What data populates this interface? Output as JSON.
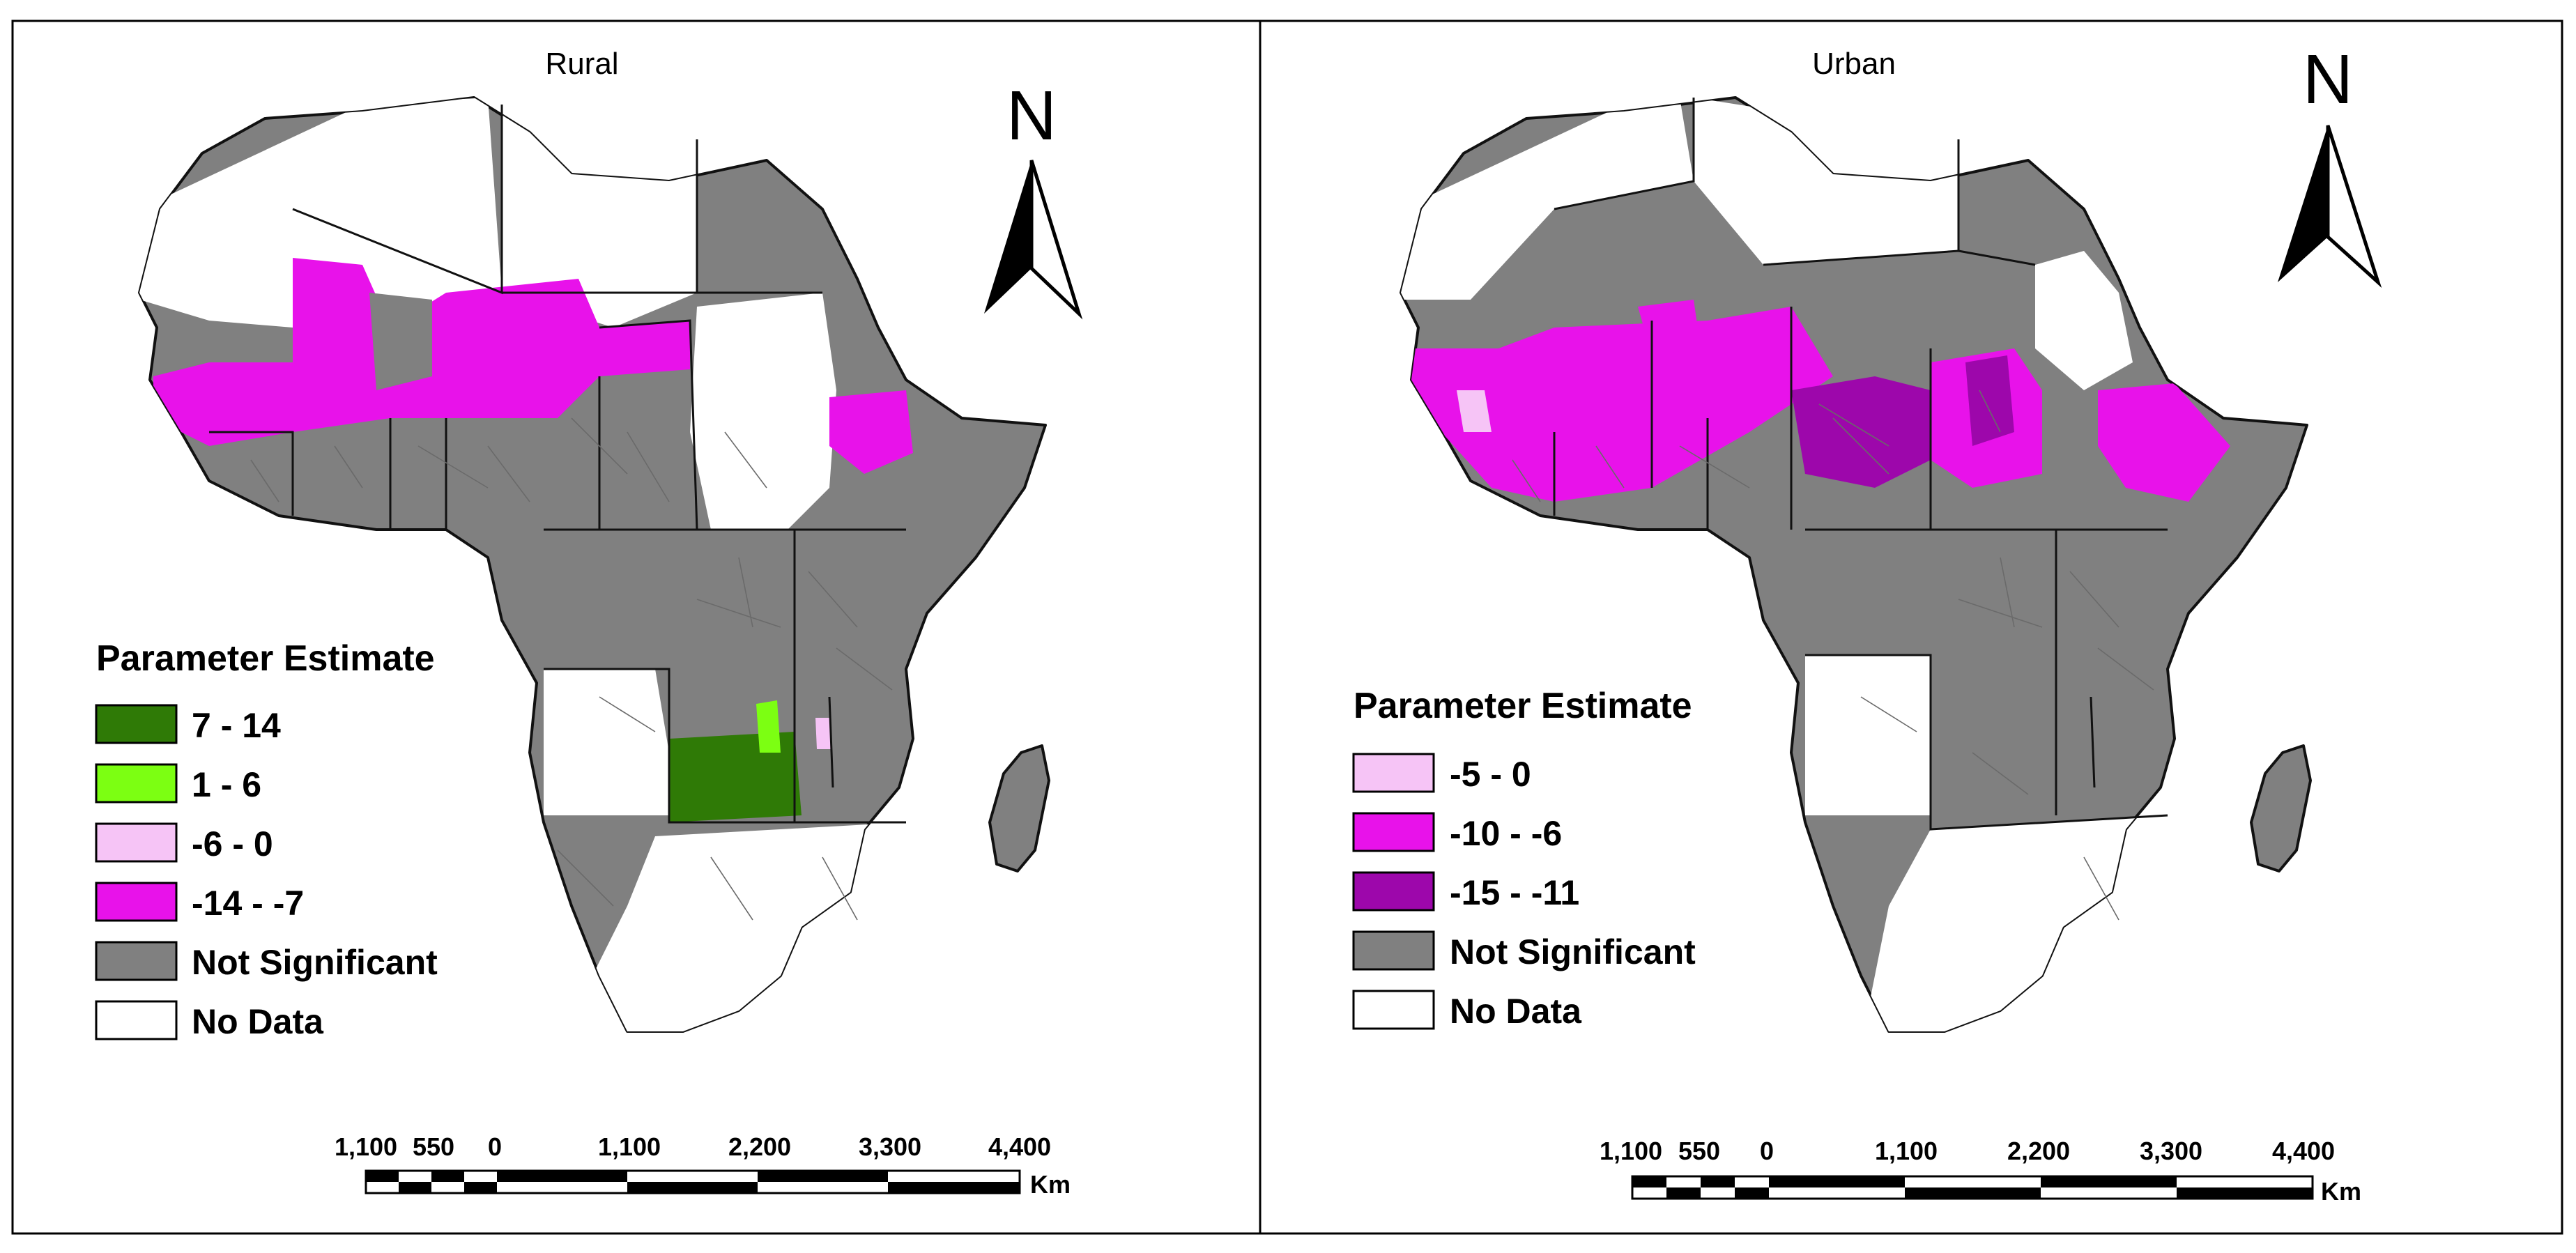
{
  "colors": {
    "not_significant": "#808080",
    "no_data": "#ffffff",
    "dark_green": "#2f7a06",
    "light_green": "#7cff12",
    "light_pink": "#f6c4f6",
    "magenta": "#e812ea",
    "purple": "#9d07ab"
  },
  "panels": [
    {
      "title": "Rural",
      "legend": {
        "title": "Parameter Estimate",
        "items": [
          {
            "label": "7 - 14",
            "color": "#2f7a06"
          },
          {
            "label": "1 - 6",
            "color": "#7cff12"
          },
          {
            "label": "-6 - 0",
            "color": "#f6c4f6"
          },
          {
            "label": "-14 - -7",
            "color": "#e812ea"
          },
          {
            "label": "Not Significant",
            "color": "#808080"
          },
          {
            "label": "No Data",
            "color": "#ffffff"
          }
        ]
      }
    },
    {
      "title": "Urban",
      "legend": {
        "title": "Parameter Estimate",
        "items": [
          {
            "label": "-5 - 0",
            "color": "#f6c4f6"
          },
          {
            "label": "-10 - -6",
            "color": "#e812ea"
          },
          {
            "label": "-15 - -11",
            "color": "#9d07ab"
          },
          {
            "label": "Not Significant",
            "color": "#808080"
          },
          {
            "label": "No Data",
            "color": "#ffffff"
          }
        ]
      }
    }
  ],
  "north_arrow": {
    "letter": "N",
    "icon": "north-arrow-icon"
  },
  "scale_bar": {
    "labels": [
      "1,100",
      "550",
      "0",
      "1,100",
      "2,200",
      "3,300",
      "4,400"
    ],
    "unit": "Km"
  }
}
